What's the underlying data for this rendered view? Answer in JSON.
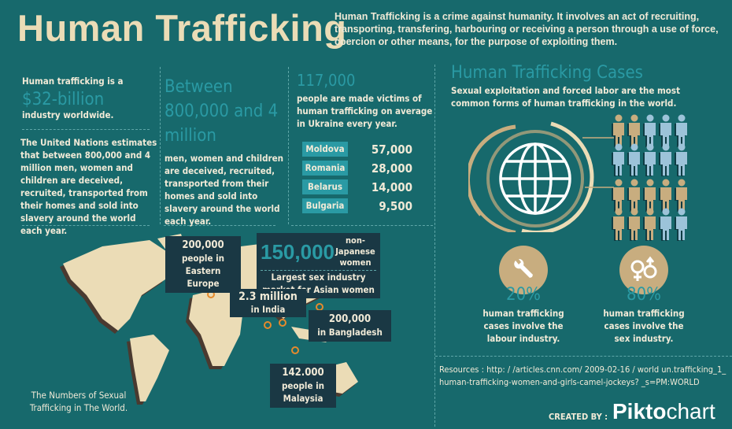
{
  "header": {
    "title": "Human Trafficking",
    "intro": "Human Trafficking is a crime against humanity. It involves an act of recruiting, transporting, transfering, harbouring or receiving a person through a use of force, coercion or other means, for the purpose of exploiting them."
  },
  "col1": {
    "lead": "Human trafficking is a",
    "highlight": "$32-billion",
    "tail": "industry worldwide.",
    "body": "The United Nations estimates that between 800,000 and 4 million men, women and children are deceived, recruited, transported from their homes and sold into slavery around the world each year."
  },
  "col2": {
    "highlight": "Between 800,000 and 4 million",
    "body": "men, women and children are deceived, recruited, transported from their homes and sold into slavery around the world each year."
  },
  "col3": {
    "highlight": "117,000",
    "body": "people are made victims of human trafficking on average in Ukraine every year.",
    "countries": [
      {
        "name": "Moldova",
        "value": "57,000"
      },
      {
        "name": "Romania",
        "value": "28,000"
      },
      {
        "name": "Belarus",
        "value": "14,000"
      },
      {
        "name": "Bulgaria",
        "value": "9,500"
      }
    ]
  },
  "cases": {
    "title": "Human Trafficking Cases",
    "subtitle": "Sexual exploitation and forced labor are the most common forms of human trafficking in the world.",
    "icon": "globe-icon",
    "people_rows": [
      [
        "tan",
        "tan",
        "blue",
        "blue",
        "blue"
      ],
      [
        "blue",
        "blue",
        "blue",
        "blue",
        "blue"
      ],
      [
        "tan",
        "tan",
        "tan",
        "tan",
        "tan"
      ],
      [
        "tan",
        "tan",
        "tan",
        "blue",
        "blue"
      ]
    ],
    "stats": [
      {
        "icon": "wrench-icon",
        "percent": "20%",
        "text": "human trafficking cases involve the labour industry."
      },
      {
        "icon": "gender-icon",
        "percent": "80%",
        "text": "human trafficking cases involve the sex industry."
      }
    ]
  },
  "map": {
    "caption": "The Numbers of Sexual Trafficking in The World.",
    "callouts": {
      "europe": {
        "number": "200,000",
        "text": "people in Eastern Europe"
      },
      "japan": {
        "number": "150,000",
        "qualifier": "non-Japanese women",
        "text": "Largest sex industry market for Asian women"
      },
      "india": {
        "number": "2.3 million",
        "text": "in India"
      },
      "bangladesh": {
        "number": "200,000",
        "text": "in Bangladesh"
      },
      "malaysia": {
        "number": "142.000",
        "text": "people in Malaysia"
      }
    }
  },
  "footer": {
    "resources": "Resources : http: / /articles.cnn.com/ 2009-02-16 / world un.trafficking_1_human-trafficking-women-and-girls-camel-jockeys? _s=PM:WORLD",
    "created_by": "CREATED BY :",
    "brand_bold": "Pikto",
    "brand_light": "chart"
  },
  "colors": {
    "background": "#17696c",
    "accent": "#2a9aa4",
    "cream": "#ebdcb6",
    "tan": "#c8ad7f",
    "blue": "#9cc3d9",
    "pin": "#e58a2c",
    "box": "#1a3844"
  }
}
